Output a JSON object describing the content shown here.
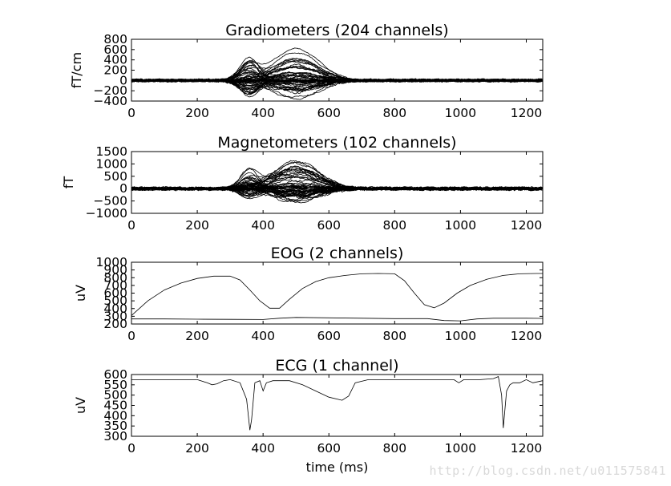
{
  "watermark": "http://blog.csdn.net/u011575841",
  "chart_data": [
    {
      "type": "line",
      "title": "Gradiometers (204 channels)",
      "ylabel": "fT/cm",
      "xlabel": "",
      "xlim": [
        0,
        1250
      ],
      "ylim": [
        -400,
        800
      ],
      "xticks": [
        0,
        200,
        400,
        600,
        800,
        1000,
        1200
      ],
      "yticks": [
        -400,
        -200,
        0,
        200,
        400,
        600,
        800
      ],
      "ytick_labels": [
        "−400",
        "−200",
        "0",
        "200",
        "400",
        "600",
        "800"
      ],
      "channel_count": 204,
      "features": [
        {
          "x": 360,
          "peak_max": 500,
          "peak_min": -350,
          "width": 30
        },
        {
          "x": 500,
          "peak_max": 650,
          "peak_min": -380,
          "width": 70
        }
      ],
      "baseline_noise": 25
    },
    {
      "type": "line",
      "title": "Magnetometers (102 channels)",
      "ylabel": "fT",
      "xlabel": "",
      "xlim": [
        0,
        1250
      ],
      "ylim": [
        -1000,
        1500
      ],
      "xticks": [
        0,
        200,
        400,
        600,
        800,
        1000,
        1200
      ],
      "yticks": [
        -1000,
        -500,
        0,
        500,
        1000,
        1500
      ],
      "ytick_labels": [
        "−1000",
        "−500",
        "0",
        "500",
        "1000",
        "1500"
      ],
      "channel_count": 102,
      "features": [
        {
          "x": 360,
          "peak_max": 1000,
          "peak_min": -500,
          "width": 30
        },
        {
          "x": 500,
          "peak_max": 1200,
          "peak_min": -600,
          "width": 70
        }
      ],
      "baseline_noise": 60
    },
    {
      "type": "line",
      "title": "EOG (2 channels)",
      "ylabel": "uV",
      "xlabel": "",
      "xlim": [
        0,
        1250
      ],
      "ylim": [
        200,
        1000
      ],
      "xticks": [
        0,
        200,
        400,
        600,
        800,
        1000,
        1200
      ],
      "yticks": [
        200,
        300,
        400,
        500,
        600,
        700,
        800,
        900,
        1000
      ],
      "ytick_labels": [
        "200",
        "300",
        "400",
        "500",
        "600",
        "700",
        "800",
        "900",
        "1000"
      ],
      "series": [
        {
          "x": [
            0,
            50,
            100,
            150,
            200,
            250,
            300,
            330,
            360,
            390,
            420,
            450,
            480,
            520,
            560,
            600,
            650,
            700,
            750,
            800,
            830,
            860,
            890,
            920,
            950,
            990,
            1030,
            1080,
            1130,
            1180,
            1230,
            1250
          ],
          "values": [
            310,
            500,
            640,
            730,
            790,
            820,
            820,
            770,
            640,
            500,
            405,
            405,
            520,
            660,
            750,
            800,
            830,
            850,
            855,
            850,
            760,
            600,
            450,
            410,
            470,
            600,
            700,
            780,
            830,
            850,
            855,
            855
          ]
        },
        {
          "x": [
            0,
            100,
            200,
            300,
            400,
            450,
            500,
            600,
            700,
            800,
            900,
            950,
            1000,
            1050,
            1100,
            1150,
            1200,
            1250
          ],
          "values": [
            265,
            265,
            262,
            260,
            258,
            275,
            285,
            280,
            275,
            270,
            270,
            245,
            240,
            265,
            275,
            275,
            275,
            273
          ]
        }
      ]
    },
    {
      "type": "line",
      "title": "ECG (1 channel)",
      "ylabel": "uV",
      "xlabel": "time (ms)",
      "xlim": [
        0,
        1250
      ],
      "ylim": [
        300,
        600
      ],
      "xticks": [
        0,
        200,
        400,
        600,
        800,
        1000,
        1200
      ],
      "yticks": [
        300,
        350,
        400,
        450,
        500,
        550,
        600
      ],
      "ytick_labels": [
        "300",
        "350",
        "400",
        "450",
        "500",
        "550",
        "600"
      ],
      "series": [
        {
          "x": [
            0,
            100,
            200,
            230,
            245,
            260,
            280,
            300,
            330,
            350,
            360,
            365,
            375,
            390,
            400,
            410,
            430,
            480,
            520,
            560,
            600,
            640,
            660,
            680,
            720,
            800,
            900,
            980,
            995,
            1010,
            1030,
            1060,
            1100,
            1115,
            1125,
            1130,
            1140,
            1150,
            1160,
            1180,
            1200,
            1220,
            1250
          ],
          "values": [
            575,
            575,
            575,
            560,
            550,
            555,
            570,
            575,
            560,
            480,
            330,
            380,
            560,
            570,
            520,
            560,
            570,
            570,
            550,
            520,
            490,
            475,
            495,
            560,
            575,
            575,
            575,
            575,
            560,
            575,
            575,
            575,
            580,
            590,
            500,
            340,
            520,
            550,
            560,
            560,
            575,
            560,
            570
          ]
        }
      ]
    }
  ]
}
